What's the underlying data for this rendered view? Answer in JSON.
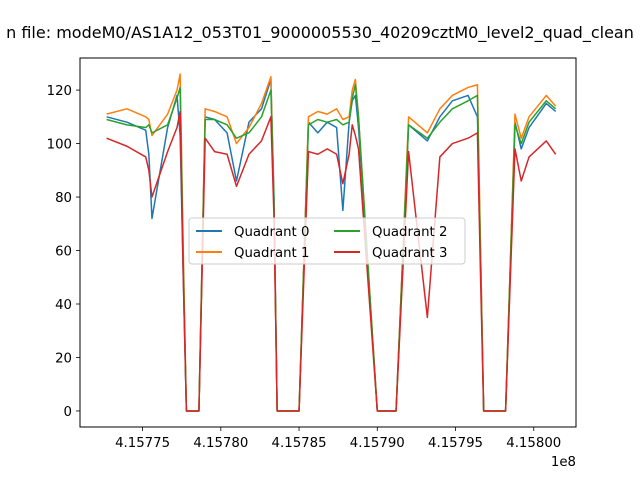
{
  "chart_data": {
    "type": "line",
    "title": "n file: modeM0/AS1A12_053T01_9000005530_40209cztM0_level2_quad_clean",
    "xlabel": "",
    "ylabel": "",
    "x_offset_label": "1e8",
    "xlim": [
      4.15771,
      4.158027
    ],
    "ylim": [
      -6,
      132
    ],
    "x_ticks": [
      4.15775,
      4.1578,
      4.15785,
      4.1579,
      4.15795,
      4.158
    ],
    "x_tick_labels": [
      "4.15775",
      "4.15780",
      "4.15785",
      "4.15790",
      "4.15795",
      "4.15800"
    ],
    "y_ticks": [
      0,
      20,
      40,
      60,
      80,
      100,
      120
    ],
    "y_tick_labels": [
      "0",
      "20",
      "40",
      "60",
      "80",
      "100",
      "120"
    ],
    "grid": false,
    "legend": {
      "placement": "center",
      "ncol": 2
    },
    "x": [
      4.157727,
      4.15774,
      4.157752,
      4.157754,
      4.157756,
      4.157766,
      4.157772,
      4.157774,
      4.157776,
      4.157778,
      4.157786,
      4.15779,
      4.157796,
      4.157804,
      4.15781,
      4.157818,
      4.157826,
      4.157832,
      4.157834,
      4.157836,
      4.157838,
      4.15785,
      4.157856,
      4.157862,
      4.157868,
      4.157874,
      4.157878,
      4.157882,
      4.157884,
      4.157886,
      4.157888,
      4.1579,
      4.157906,
      4.157912,
      4.15792,
      4.157932,
      4.15794,
      4.157948,
      4.157958,
      4.157964,
      4.157966,
      4.157968,
      4.15797,
      4.157982,
      4.157988,
      4.157992,
      4.157997,
      4.158008,
      4.158014
    ],
    "series": [
      {
        "name": "Quadrant 0",
        "color": "#1f77b4",
        "values": [
          110,
          108,
          105,
          96,
          72,
          106,
          118,
          103,
          50,
          0,
          0,
          110,
          109,
          104,
          86,
          108,
          113,
          124,
          80,
          0,
          0,
          0,
          108,
          104,
          108,
          106,
          75,
          108,
          116,
          118,
          106,
          0,
          0,
          0,
          107,
          101,
          110,
          116,
          118,
          110,
          60,
          0,
          0,
          0,
          108,
          98,
          106,
          115,
          112
        ]
      },
      {
        "name": "Quadrant 1",
        "color": "#ff7f0e",
        "values": [
          111,
          113,
          110,
          109,
          103,
          111,
          120,
          126,
          60,
          0,
          0,
          113,
          112,
          110,
          100,
          106,
          115,
          125,
          75,
          0,
          0,
          0,
          110,
          112,
          111,
          113,
          109,
          110,
          120,
          124,
          110,
          0,
          0,
          0,
          110,
          104,
          113,
          118,
          121,
          122,
          60,
          0,
          0,
          0,
          111,
          102,
          110,
          118,
          114
        ]
      },
      {
        "name": "Quadrant 2",
        "color": "#2ca02c",
        "values": [
          109,
          107,
          106,
          107,
          104,
          107,
          117,
          121,
          55,
          0,
          0,
          109,
          109,
          107,
          102,
          104,
          110,
          120,
          77,
          0,
          0,
          0,
          107,
          109,
          108,
          109,
          107,
          108,
          117,
          122,
          110,
          0,
          0,
          0,
          107,
          102,
          108,
          113,
          116,
          118,
          55,
          0,
          0,
          0,
          107,
          100,
          108,
          116,
          113
        ]
      },
      {
        "name": "Quadrant 3",
        "color": "#d62728",
        "values": [
          102,
          99,
          95,
          90,
          80,
          97,
          106,
          112,
          50,
          0,
          0,
          102,
          97,
          96,
          84,
          96,
          101,
          110,
          72,
          0,
          0,
          0,
          97,
          96,
          98,
          96,
          85,
          96,
          107,
          103,
          98,
          0,
          0,
          0,
          97,
          35,
          95,
          100,
          102,
          104,
          50,
          0,
          0,
          0,
          98,
          86,
          95,
          101,
          96
        ]
      }
    ]
  }
}
